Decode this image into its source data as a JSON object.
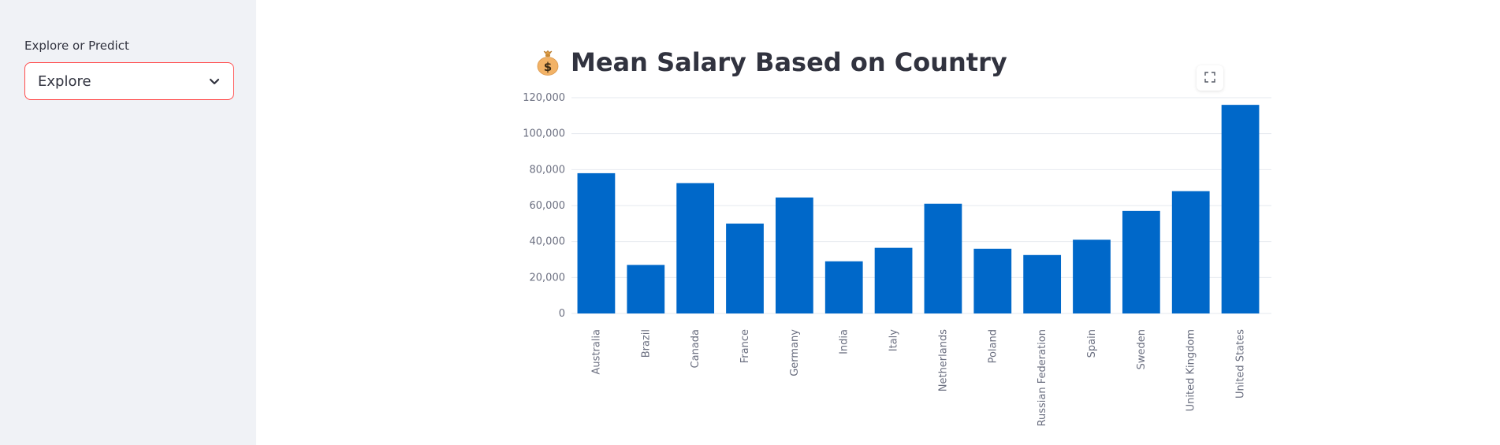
{
  "sidebar": {
    "label": "Explore or Predict",
    "select": {
      "value": "Explore",
      "icon": "chevron-down-icon"
    }
  },
  "main": {
    "title": "Mean Salary Based on Country",
    "title_icon": "money-bag-icon",
    "fullscreen_icon": "expand-icon"
  },
  "colors": {
    "bar": "#0068c9",
    "accent_border": "#ff4b4b",
    "sidebar_bg": "#f0f2f6",
    "text": "#31333f",
    "grid": "#e6e9ef"
  },
  "chart_data": {
    "type": "bar",
    "title": "Mean Salary Based on Country",
    "xlabel": "",
    "ylabel": "",
    "categories": [
      "Australia",
      "Brazil",
      "Canada",
      "France",
      "Germany",
      "India",
      "Italy",
      "Netherlands",
      "Poland",
      "Russian Federation",
      "Spain",
      "Sweden",
      "United Kingdom",
      "United States"
    ],
    "values": [
      78000,
      27000,
      72500,
      50000,
      64500,
      29000,
      36500,
      61000,
      36000,
      32500,
      41000,
      57000,
      68000,
      116000
    ],
    "ylim": [
      0,
      120000
    ],
    "yticks": [
      0,
      20000,
      40000,
      60000,
      80000,
      100000,
      120000
    ],
    "ytick_labels": [
      "0",
      "20,000",
      "40,000",
      "60,000",
      "80,000",
      "100,000",
      "120,000"
    ],
    "grid": true
  }
}
